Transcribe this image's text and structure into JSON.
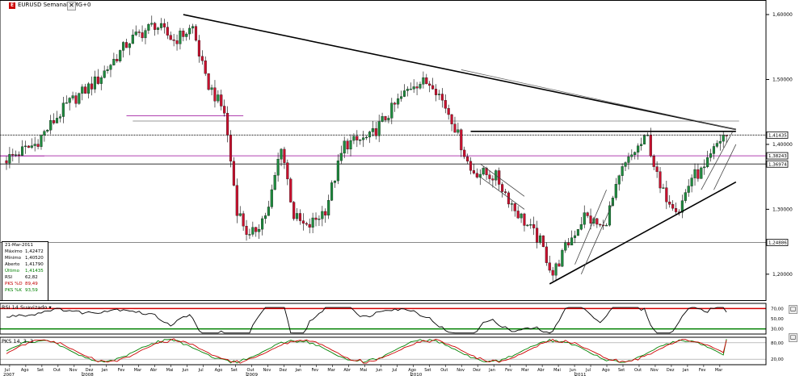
{
  "window": {
    "symbol_title": "EURUSD Semanal TMG+0",
    "icon": "chart-icon",
    "maximize_glyph": "▢",
    "close_glyph": "✕"
  },
  "infobox": {
    "date": "21-Mar-2011",
    "rows": [
      {
        "label": "Máximo",
        "value": "1,42472",
        "color": "normal"
      },
      {
        "label": "Mínimo",
        "value": "1,40520",
        "color": "normal"
      },
      {
        "label": "Aberto",
        "value": "1,41790",
        "color": "normal"
      },
      {
        "label": "Último",
        "value": "1,41435",
        "color": "green"
      },
      {
        "label": "RSI",
        "value": "62,82",
        "color": "normal"
      },
      {
        "label": "PKS %D",
        "value": "89,49",
        "color": "red"
      },
      {
        "label": "PKS %K",
        "value": "93,59",
        "color": "green"
      }
    ]
  },
  "panels": {
    "rsi_title": "RSI 14 Suavizado",
    "pks_title": "PKS 14, 3 ,3"
  },
  "colors": {
    "bull": "#1e8a3e",
    "bear": "#c8102e",
    "rsi_band": "#d00000",
    "rsi_low": "#008000",
    "pks_d": "#cc0000",
    "pks_k": "#008000",
    "pivot": "#b040b0"
  },
  "chart_data": [
    {
      "type": "candlestick",
      "title": "EURUSD Semanal TMG+0",
      "y_axis_ticks": [
        "1,60000",
        "1,50000",
        "1,40000",
        "1,30000",
        "1,20000"
      ],
      "ylim": [
        1.16,
        1.61
      ],
      "price_labels": [
        {
          "label": "1,41435",
          "value": 1.41435,
          "style": "dotted"
        },
        {
          "label": "1,38243",
          "value": 1.38243,
          "style": "pivot"
        },
        {
          "label": "1,36974",
          "value": 1.36974,
          "style": "solid"
        },
        {
          "label": "1,24886",
          "value": 1.24886,
          "style": "solid"
        }
      ],
      "x_month_ticks": [
        "Jul",
        "Ago",
        "Set",
        "Out",
        "Nov",
        "Dez",
        "Jan",
        "Fev",
        "Mar",
        "Abr",
        "Mai",
        "Jun",
        "Jul",
        "Ago",
        "Set",
        "Out",
        "Nov",
        "Dez",
        "Jan",
        "Fev",
        "Mar",
        "Abr",
        "Mai",
        "Jun",
        "Jul",
        "Ago",
        "Set",
        "Out",
        "Nov",
        "Dez",
        "Jan",
        "Fev",
        "Mar",
        "Abr",
        "Mai",
        "Jun",
        "Jul",
        "Ago",
        "Set",
        "Out",
        "Nov",
        "Dez",
        "Jan",
        "Fev",
        "Mar"
      ],
      "x_year_ticks": [
        "2007",
        "2008",
        "2009",
        "2010",
        "2011"
      ],
      "price_path": [
        {
          "week": 0,
          "price": 1.375
        },
        {
          "week": 10,
          "price": 1.4
        },
        {
          "week": 20,
          "price": 1.46
        },
        {
          "week": 30,
          "price": 1.5
        },
        {
          "week": 40,
          "price": 1.56
        },
        {
          "week": 48,
          "price": 1.585
        },
        {
          "week": 54,
          "price": 1.56
        },
        {
          "week": 60,
          "price": 1.58
        },
        {
          "week": 64,
          "price": 1.5
        },
        {
          "week": 70,
          "price": 1.45
        },
        {
          "week": 74,
          "price": 1.3
        },
        {
          "week": 78,
          "price": 1.255
        },
        {
          "week": 84,
          "price": 1.3
        },
        {
          "week": 88,
          "price": 1.4
        },
        {
          "week": 92,
          "price": 1.29
        },
        {
          "week": 96,
          "price": 1.27
        },
        {
          "week": 102,
          "price": 1.3
        },
        {
          "week": 108,
          "price": 1.4
        },
        {
          "week": 116,
          "price": 1.41
        },
        {
          "week": 124,
          "price": 1.46
        },
        {
          "week": 130,
          "price": 1.495
        },
        {
          "week": 136,
          "price": 1.495
        },
        {
          "week": 142,
          "price": 1.44
        },
        {
          "week": 148,
          "price": 1.36
        },
        {
          "week": 156,
          "price": 1.35
        },
        {
          "week": 162,
          "price": 1.3
        },
        {
          "week": 170,
          "price": 1.25
        },
        {
          "week": 174,
          "price": 1.2
        },
        {
          "week": 178,
          "price": 1.24
        },
        {
          "week": 184,
          "price": 1.29
        },
        {
          "week": 190,
          "price": 1.27
        },
        {
          "week": 196,
          "price": 1.36
        },
        {
          "week": 200,
          "price": 1.39
        },
        {
          "week": 204,
          "price": 1.41
        },
        {
          "week": 208,
          "price": 1.33
        },
        {
          "week": 214,
          "price": 1.3
        },
        {
          "week": 218,
          "price": 1.35
        },
        {
          "week": 222,
          "price": 1.36
        },
        {
          "week": 226,
          "price": 1.4
        },
        {
          "week": 228,
          "price": 1.414
        }
      ],
      "trendlines": [
        {
          "name": "long-resistance",
          "from": {
            "week": 56,
            "price": 1.6
          },
          "to": {
            "week": 231,
            "price": 1.423
          }
        },
        {
          "name": "mid-resistance",
          "from": {
            "week": 144,
            "price": 1.515
          },
          "to": {
            "week": 231,
            "price": 1.423
          }
        },
        {
          "name": "long-support",
          "from": {
            "week": 172,
            "price": 1.185
          },
          "to": {
            "week": 231,
            "price": 1.342
          }
        },
        {
          "name": "neck-line",
          "from": {
            "week": 147,
            "price": 1.42
          },
          "to": {
            "week": 231,
            "price": 1.42
          }
        }
      ],
      "horizontal_lines": [
        1.436,
        1.41435,
        1.38243,
        1.36974,
        1.24886
      ]
    },
    {
      "type": "line",
      "title": "RSI 14 Suavizado",
      "y_axis_ticks": [
        "70,00",
        "50,00",
        "30,00"
      ],
      "ylim": [
        20,
        80
      ],
      "guide_lines": [
        70,
        30
      ],
      "series": [
        {
          "name": "RSI",
          "last_value": 62.82
        }
      ]
    },
    {
      "type": "line",
      "title": "PKS 14, 3 ,3",
      "y_axis_ticks": [
        "80,00",
        "20,00"
      ],
      "ylim": [
        0,
        100
      ],
      "guide_lines": [
        80,
        20
      ],
      "series": [
        {
          "name": "PKS %D",
          "last_value": 89.49
        },
        {
          "name": "PKS %K",
          "last_value": 93.59
        }
      ]
    }
  ]
}
